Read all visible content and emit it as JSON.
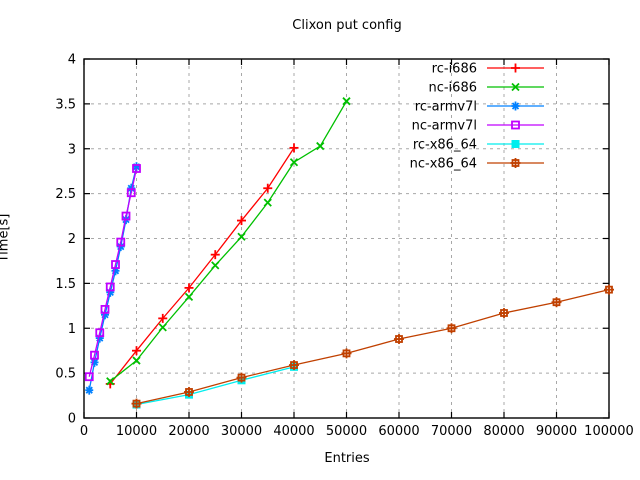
{
  "chart_data": {
    "type": "line",
    "title": "Clixon put config",
    "xlabel": "Entries",
    "ylabel": "Time[s]",
    "xlim": [
      0,
      100000
    ],
    "ylim": [
      0,
      4
    ],
    "xticks": [
      0,
      10000,
      20000,
      30000,
      40000,
      50000,
      60000,
      70000,
      80000,
      90000,
      100000
    ],
    "yticks": [
      0,
      0.5,
      1,
      1.5,
      2,
      2.5,
      3,
      3.5,
      4
    ],
    "grid": true,
    "legend_position": "top-right-inside",
    "colors": {
      "background": "#ffffff",
      "border": "#000000",
      "grid": "#a8a8a8",
      "text": "#000000"
    },
    "series": [
      {
        "name": "rc-i686",
        "color": "#ff0000",
        "marker": "plus",
        "points": [
          [
            5000,
            0.38
          ],
          [
            10000,
            0.75
          ],
          [
            15000,
            1.11
          ],
          [
            20000,
            1.45
          ],
          [
            25000,
            1.82
          ],
          [
            30000,
            2.2
          ],
          [
            35000,
            2.56
          ],
          [
            40000,
            3.01
          ]
        ]
      },
      {
        "name": "nc-i686",
        "color": "#00c000",
        "marker": "cross",
        "points": [
          [
            5000,
            0.41
          ],
          [
            10000,
            0.64
          ],
          [
            15000,
            1.01
          ],
          [
            20000,
            1.35
          ],
          [
            25000,
            1.7
          ],
          [
            30000,
            2.02
          ],
          [
            35000,
            2.4
          ],
          [
            40000,
            2.85
          ],
          [
            45000,
            3.03
          ],
          [
            50000,
            3.53
          ]
        ]
      },
      {
        "name": "rc-armv7l",
        "color": "#0080ff",
        "marker": "asterisk",
        "points": [
          [
            1000,
            0.31
          ],
          [
            2000,
            0.62
          ],
          [
            3000,
            0.89
          ],
          [
            4000,
            1.15
          ],
          [
            5000,
            1.4
          ],
          [
            6000,
            1.64
          ],
          [
            7000,
            1.91
          ],
          [
            8000,
            2.21
          ],
          [
            9000,
            2.56
          ],
          [
            10000,
            2.8
          ]
        ]
      },
      {
        "name": "nc-armv7l",
        "color": "#c000ff",
        "marker": "square-open",
        "points": [
          [
            1000,
            0.46
          ],
          [
            2000,
            0.7
          ],
          [
            3000,
            0.95
          ],
          [
            4000,
            1.21
          ],
          [
            5000,
            1.46
          ],
          [
            6000,
            1.71
          ],
          [
            7000,
            1.96
          ],
          [
            8000,
            2.25
          ],
          [
            9000,
            2.51
          ],
          [
            10000,
            2.78
          ]
        ]
      },
      {
        "name": "rc-x86_64",
        "color": "#00eeee",
        "marker": "square-filled",
        "points": [
          [
            10000,
            0.15
          ],
          [
            20000,
            0.26
          ],
          [
            30000,
            0.42
          ],
          [
            40000,
            0.57
          ]
        ]
      },
      {
        "name": "nc-x86_64",
        "color": "#c04000",
        "marker": "boxplus",
        "points": [
          [
            10000,
            0.16
          ],
          [
            20000,
            0.29
          ],
          [
            30000,
            0.45
          ],
          [
            40000,
            0.59
          ],
          [
            50000,
            0.72
          ],
          [
            60000,
            0.88
          ],
          [
            70000,
            1.0
          ],
          [
            80000,
            1.17
          ],
          [
            90000,
            1.29
          ],
          [
            100000,
            1.43
          ]
        ]
      }
    ]
  }
}
